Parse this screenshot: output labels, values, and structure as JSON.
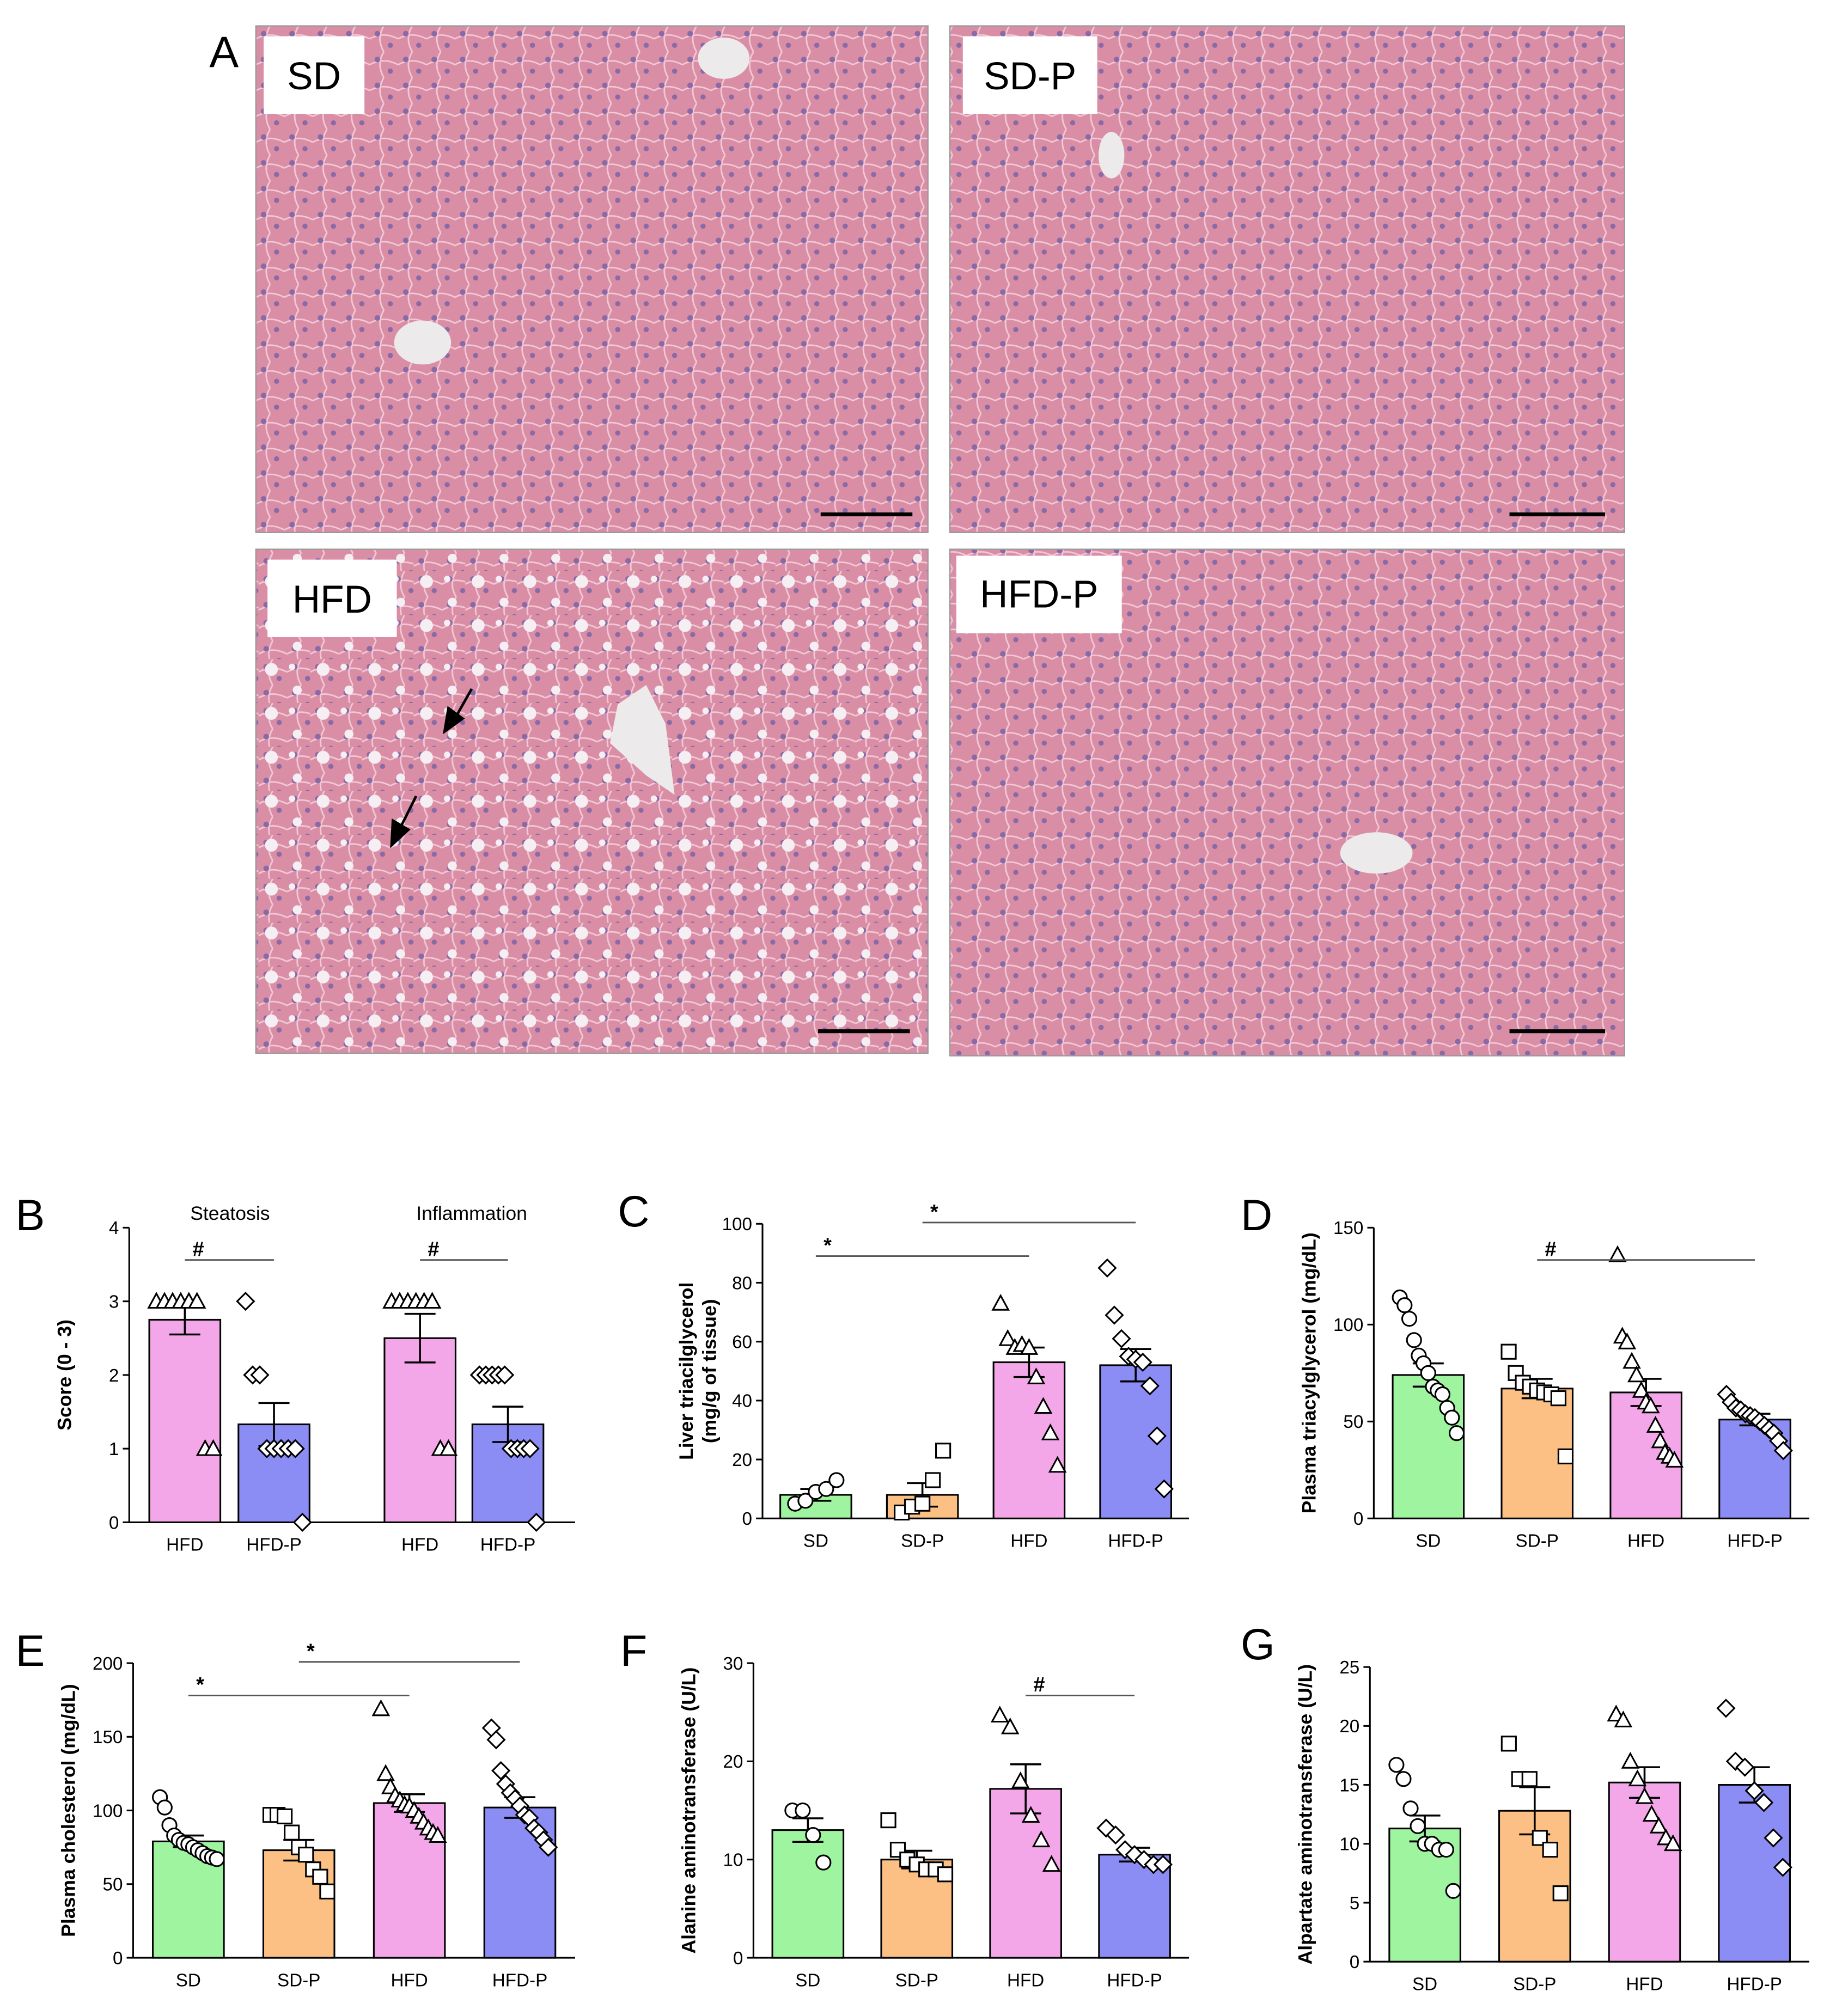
{
  "panel_a": {
    "label": "A",
    "images": [
      {
        "label": "SD"
      },
      {
        "label": "SD-P"
      },
      {
        "label": "HFD"
      },
      {
        "label": "HFD-P"
      }
    ]
  },
  "chart_data": [
    {
      "type": "bar",
      "panel": "B",
      "ylabel": "Score (0 - 3)",
      "groups": [
        "Steatosis",
        "Inflammation"
      ],
      "categories": [
        "HFD",
        "HFD-P",
        "HFD",
        "HFD-P"
      ],
      "values": [
        2.75,
        1.33,
        2.5,
        1.33
      ],
      "errors": [
        0.2,
        0.29,
        0.33,
        0.24
      ],
      "colors": [
        "#f3a6e8",
        "#8c8cf5",
        "#f3a6e8",
        "#8c8cf5"
      ],
      "markers": [
        "triangle",
        "diamond",
        "triangle",
        "diamond"
      ],
      "points": [
        [
          3,
          3,
          3,
          3,
          3,
          3,
          1,
          1
        ],
        [
          3,
          2,
          2,
          1,
          1,
          1,
          1,
          1,
          0
        ],
        [
          3,
          3,
          3,
          3,
          3,
          3,
          1,
          1
        ],
        [
          2,
          2,
          2,
          2,
          2,
          1,
          1,
          1,
          1,
          0
        ]
      ],
      "ylim": [
        0,
        4
      ],
      "yticks": [
        0,
        1,
        2,
        3,
        4
      ],
      "annotations": [
        {
          "from": 0,
          "to": 1,
          "label": "#"
        },
        {
          "from": 2,
          "to": 3,
          "label": "#"
        }
      ]
    },
    {
      "type": "bar",
      "panel": "C",
      "ylabel": [
        "Liver triacilglycerol",
        "(mg/g of tissue)"
      ],
      "categories": [
        "SD",
        "SD-P",
        "HFD",
        "HFD-P"
      ],
      "values": [
        8,
        8,
        53,
        52
      ],
      "errors": [
        2,
        4,
        5,
        5.5
      ],
      "colors": [
        "#9ff59f",
        "#fcbf84",
        "#f3a6e8",
        "#8c8cf5"
      ],
      "markers": [
        "circle",
        "square",
        "triangle",
        "diamond"
      ],
      "points": [
        [
          5,
          6,
          9,
          10,
          13
        ],
        [
          2,
          4,
          5,
          13,
          23
        ],
        [
          73,
          61,
          58,
          59,
          58,
          48,
          38,
          29,
          18
        ],
        [
          85,
          69,
          61,
          55,
          54,
          53,
          45,
          28,
          10
        ]
      ],
      "ylim": [
        0,
        100
      ],
      "yticks": [
        0,
        20,
        40,
        60,
        80,
        100
      ],
      "annotations": [
        {
          "from": 0,
          "to": 2,
          "label": "*"
        },
        {
          "from": 1,
          "to": 3,
          "label": "*"
        }
      ]
    },
    {
      "type": "bar",
      "panel": "D",
      "ylabel": "Plasma triacylglycerol (mg/dL)",
      "categories": [
        "SD",
        "SD-P",
        "HFD",
        "HFD-P"
      ],
      "values": [
        74,
        67,
        65,
        51
      ],
      "errors": [
        6,
        5,
        7,
        3
      ],
      "colors": [
        "#9ff59f",
        "#fcbf84",
        "#f3a6e8",
        "#8c8cf5"
      ],
      "markers": [
        "circle",
        "square",
        "triangle",
        "diamond"
      ],
      "points": [
        [
          114,
          110,
          103,
          92,
          84,
          80,
          75,
          68,
          66,
          64,
          57,
          52,
          44
        ],
        [
          86,
          75,
          70,
          68,
          66,
          65,
          64,
          62,
          32
        ],
        [
          136,
          94,
          91,
          81,
          74,
          66,
          60,
          58,
          48,
          40,
          34,
          32,
          30
        ],
        [
          64,
          60,
          57,
          56,
          54,
          53,
          52,
          50,
          48,
          46,
          44,
          40,
          35
        ]
      ],
      "ylim": [
        0,
        150
      ],
      "yticks": [
        0,
        50,
        100,
        150
      ],
      "annotations": [
        {
          "from": 1,
          "to": 3,
          "label": "#"
        }
      ]
    },
    {
      "type": "bar",
      "panel": "E",
      "ylabel": "Plasma cholesterol (mg/dL)",
      "categories": [
        "SD",
        "SD-P",
        "HFD",
        "HFD-P"
      ],
      "values": [
        79,
        73,
        105,
        102
      ],
      "errors": [
        4,
        7,
        6,
        7
      ],
      "colors": [
        "#9ff59f",
        "#fcbf84",
        "#f3a6e8",
        "#8c8cf5"
      ],
      "markers": [
        "circle",
        "square",
        "triangle",
        "diamond"
      ],
      "points": [
        [
          109,
          102,
          90,
          83,
          80,
          78,
          77,
          75,
          73,
          71,
          69,
          68,
          67
        ],
        [
          97,
          97,
          96,
          85,
          75,
          70,
          60,
          55,
          45
        ],
        [
          169,
          125,
          116,
          110,
          107,
          104,
          103,
          100,
          96,
          92,
          88,
          85,
          83
        ],
        [
          156,
          148,
          127,
          118,
          112,
          108,
          103,
          97,
          95,
          88,
          85,
          80,
          75
        ]
      ],
      "ylim": [
        0,
        200
      ],
      "yticks": [
        0,
        50,
        100,
        150,
        200
      ],
      "annotations": [
        {
          "from": 0,
          "to": 2,
          "label": "*"
        },
        {
          "from": 1,
          "to": 3,
          "label": "*"
        }
      ]
    },
    {
      "type": "bar",
      "panel": "F",
      "ylabel": "Alanine aminotransferase (U/L)",
      "categories": [
        "SD",
        "SD-P",
        "HFD",
        "HFD-P"
      ],
      "values": [
        13,
        10,
        17.2,
        10.5
      ],
      "errors": [
        1.2,
        0.9,
        2.5,
        0.7
      ],
      "colors": [
        "#9ff59f",
        "#fcbf84",
        "#f3a6e8",
        "#8c8cf5"
      ],
      "markers": [
        "circle",
        "square",
        "triangle",
        "diamond"
      ],
      "points": [
        [
          15,
          15,
          12.5,
          9.7
        ],
        [
          14,
          11,
          10,
          9.5,
          9,
          9,
          8.5
        ],
        [
          24.7,
          23.5,
          18,
          14.5,
          12,
          9.5
        ],
        [
          13.2,
          12.5,
          11,
          10.5,
          10,
          9.5,
          9.5
        ]
      ],
      "ylim": [
        0,
        30
      ],
      "yticks": [
        0,
        10,
        20,
        30
      ],
      "annotations": [
        {
          "from": 2,
          "to": 3,
          "label": "#"
        }
      ]
    },
    {
      "type": "bar",
      "panel": "G",
      "ylabel": "Alpartate aminotransferase (U/L)",
      "categories": [
        "SD",
        "SD-P",
        "HFD",
        "HFD-P"
      ],
      "values": [
        11.3,
        12.8,
        15.2,
        15.0
      ],
      "errors": [
        1.1,
        2,
        1.3,
        1.5
      ],
      "colors": [
        "#9ff59f",
        "#fcbf84",
        "#f3a6e8",
        "#8c8cf5"
      ],
      "markers": [
        "circle",
        "square",
        "triangle",
        "diamond"
      ],
      "points": [
        [
          16.7,
          15.5,
          13,
          11.5,
          10,
          10,
          9.5,
          9.5,
          6
        ],
        [
          18.5,
          15.5,
          15.5,
          10.5,
          9.5,
          5.8
        ],
        [
          21,
          20.5,
          17,
          15.5,
          14,
          12.5,
          11.5,
          10.5,
          10
        ],
        [
          21.5,
          17,
          16.5,
          14.5,
          13.5,
          10.5,
          8
        ]
      ],
      "ylim": [
        0,
        25
      ],
      "yticks": [
        0,
        5,
        10,
        15,
        20,
        25
      ],
      "annotations": []
    }
  ]
}
